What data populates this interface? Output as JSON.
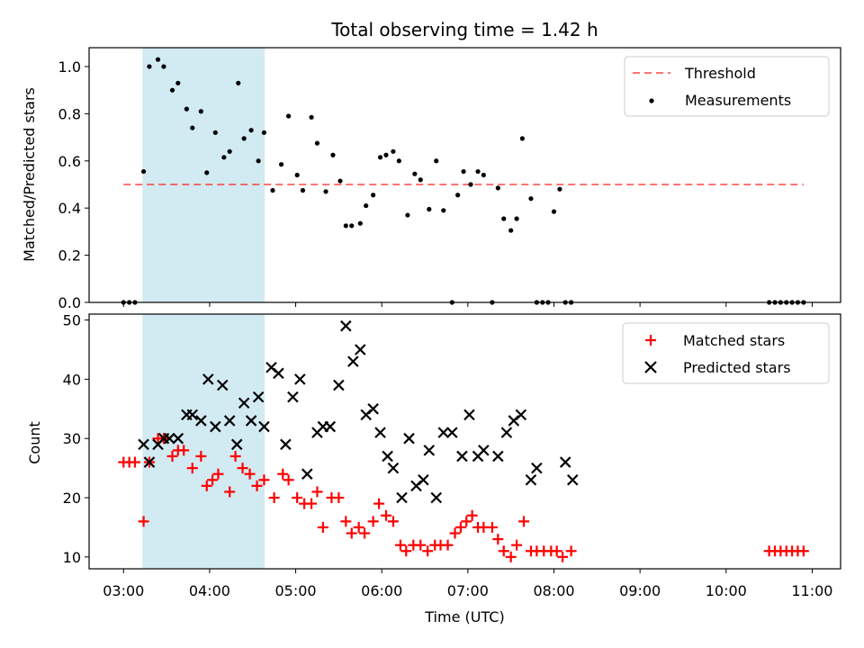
{
  "chart_data": [
    {
      "type": "scatter",
      "title": "Total observing time = 1.42 h",
      "xlabel": "",
      "ylabel": "Matched/Predicted stars",
      "xlim_hours": [
        2.6,
        11.33
      ],
      "ylim": [
        0,
        1.08
      ],
      "yticks": [
        0.0,
        0.2,
        0.4,
        0.6,
        0.8,
        1.0
      ],
      "ytick_labels": [
        "0.0",
        "0.2",
        "0.4",
        "0.6",
        "0.8",
        "1.0"
      ],
      "highlight_span_hours": [
        3.22,
        4.64
      ],
      "highlight_color": "#add8e6",
      "threshold": {
        "name": "Threshold",
        "value": 0.5,
        "x_range_hours": [
          3.0,
          10.9
        ],
        "color": "#ff0000"
      },
      "legend": {
        "position": "top-right",
        "entries": [
          "Threshold",
          "Measurements"
        ]
      },
      "series": [
        {
          "name": "Measurements",
          "color": "#000000",
          "x_hours": [
            3.0,
            3.067,
            3.133,
            3.233,
            3.3,
            3.4,
            3.467,
            3.567,
            3.633,
            3.733,
            3.8,
            3.9,
            3.967,
            4.067,
            4.167,
            4.233,
            4.333,
            4.4,
            4.483,
            4.567,
            4.633,
            4.733,
            4.833,
            4.917,
            5.017,
            5.083,
            5.183,
            5.25,
            5.35,
            5.433,
            5.517,
            5.583,
            5.65,
            5.75,
            5.817,
            5.9,
            5.983,
            6.05,
            6.133,
            6.2,
            6.3,
            6.383,
            6.45,
            6.55,
            6.633,
            6.717,
            6.817,
            6.883,
            6.95,
            7.033,
            7.117,
            7.183,
            7.283,
            7.35,
            7.417,
            7.5,
            7.567,
            7.633,
            7.733,
            7.8,
            7.867,
            7.933,
            8.0,
            8.067,
            8.133,
            8.2,
            10.5,
            10.567,
            10.633,
            10.7,
            10.767,
            10.833,
            10.9
          ],
          "y": [
            0,
            0,
            0,
            0.555,
            1.0,
            1.03,
            1.0,
            0.9,
            0.93,
            0.82,
            0.74,
            0.81,
            0.55,
            0.72,
            0.615,
            0.64,
            0.93,
            0.695,
            0.73,
            0.6,
            0.72,
            0.475,
            0.585,
            0.79,
            0.54,
            0.475,
            0.785,
            0.675,
            0.47,
            0.625,
            0.515,
            0.325,
            0.325,
            0.335,
            0.41,
            0.455,
            0.615,
            0.625,
            0.64,
            0.6,
            0.37,
            0.545,
            0.52,
            0.395,
            0.6,
            0.39,
            0,
            0.455,
            0.555,
            0.5,
            0.555,
            0.54,
            0,
            0.485,
            0.355,
            0.305,
            0.355,
            0.695,
            0.44,
            0,
            0,
            0,
            0.385,
            0.48,
            0,
            0,
            0,
            0,
            0,
            0,
            0,
            0,
            0
          ]
        }
      ]
    },
    {
      "type": "scatter",
      "title": "",
      "xlabel": "Time (UTC)",
      "ylabel": "Count",
      "xlim_hours": [
        2.6,
        11.33
      ],
      "ylim": [
        8,
        51
      ],
      "yticks": [
        10,
        20,
        30,
        40,
        50
      ],
      "ytick_labels": [
        "10",
        "20",
        "30",
        "40",
        "50"
      ],
      "xticks_hours": [
        3,
        4,
        5,
        6,
        7,
        8,
        9,
        10,
        11
      ],
      "xtick_labels": [
        "03:00",
        "04:00",
        "05:00",
        "06:00",
        "07:00",
        "08:00",
        "09:00",
        "10:00",
        "11:00"
      ],
      "highlight_span_hours": [
        3.22,
        4.64
      ],
      "highlight_color": "#add8e6",
      "legend": {
        "position": "top-right",
        "entries": [
          "Matched stars",
          "Predicted stars"
        ]
      },
      "series": [
        {
          "name": "Matched stars",
          "marker": "+",
          "color": "#ff0000",
          "x_hours": [
            3.0,
            3.067,
            3.133,
            3.233,
            3.3,
            3.4,
            3.467,
            3.567,
            3.633,
            3.7,
            3.8,
            3.9,
            3.967,
            4.033,
            4.1,
            4.233,
            4.3,
            4.383,
            4.467,
            4.55,
            4.633,
            4.75,
            4.85,
            4.917,
            5.017,
            5.1,
            5.183,
            5.25,
            5.317,
            5.417,
            5.5,
            5.583,
            5.65,
            5.733,
            5.8,
            5.9,
            5.967,
            6.05,
            6.133,
            6.217,
            6.283,
            6.367,
            6.45,
            6.533,
            6.617,
            6.683,
            6.767,
            6.85,
            6.917,
            6.983,
            7.05,
            7.117,
            7.183,
            7.283,
            7.35,
            7.417,
            7.5,
            7.567,
            7.65,
            7.733,
            7.8,
            7.883,
            7.967,
            8.033,
            8.1,
            8.2,
            10.5,
            10.567,
            10.633,
            10.7,
            10.767,
            10.833,
            10.9
          ],
          "y": [
            26,
            26,
            26,
            16,
            26,
            30,
            30,
            27,
            28,
            28,
            25,
            27,
            22,
            23,
            24,
            21,
            27,
            25,
            24,
            22,
            23,
            20,
            24,
            23,
            20,
            19,
            19,
            21,
            15,
            20,
            20,
            16,
            14,
            15,
            14,
            16,
            19,
            17,
            16,
            12,
            11,
            12,
            12,
            11,
            12,
            12,
            12,
            14,
            15,
            16,
            17,
            15,
            15,
            15,
            13,
            11,
            10,
            12,
            16,
            11,
            11,
            11,
            11,
            11,
            10,
            11,
            11,
            11,
            11,
            11,
            11,
            11,
            11
          ]
        },
        {
          "name": "Predicted stars",
          "marker": "x",
          "color": "#000000",
          "x_hours": [
            3.233,
            3.3,
            3.4,
            3.467,
            3.533,
            3.633,
            3.733,
            3.8,
            3.9,
            3.983,
            4.067,
            4.15,
            4.233,
            4.317,
            4.4,
            4.483,
            4.567,
            4.633,
            4.717,
            4.8,
            4.883,
            4.967,
            5.05,
            5.133,
            5.25,
            5.317,
            5.4,
            5.5,
            5.583,
            5.667,
            5.75,
            5.817,
            5.9,
            5.983,
            6.067,
            6.133,
            6.233,
            6.317,
            6.4,
            6.483,
            6.55,
            6.633,
            6.717,
            6.817,
            6.933,
            7.017,
            7.117,
            7.183,
            7.35,
            7.45,
            7.533,
            7.617,
            7.733,
            7.8,
            8.133,
            8.217
          ],
          "y": [
            29,
            26,
            29,
            30,
            30,
            30,
            34,
            34,
            33,
            40,
            32,
            39,
            33,
            29,
            36,
            33,
            37,
            32,
            42,
            41,
            29,
            37,
            40,
            24,
            31,
            32,
            32,
            39,
            49,
            43,
            45,
            34,
            35,
            31,
            27,
            25,
            20,
            30,
            22,
            23,
            28,
            20,
            31,
            31,
            27,
            34,
            27,
            28,
            27,
            31,
            33,
            34,
            23,
            25,
            26,
            23
          ]
        }
      ]
    }
  ]
}
